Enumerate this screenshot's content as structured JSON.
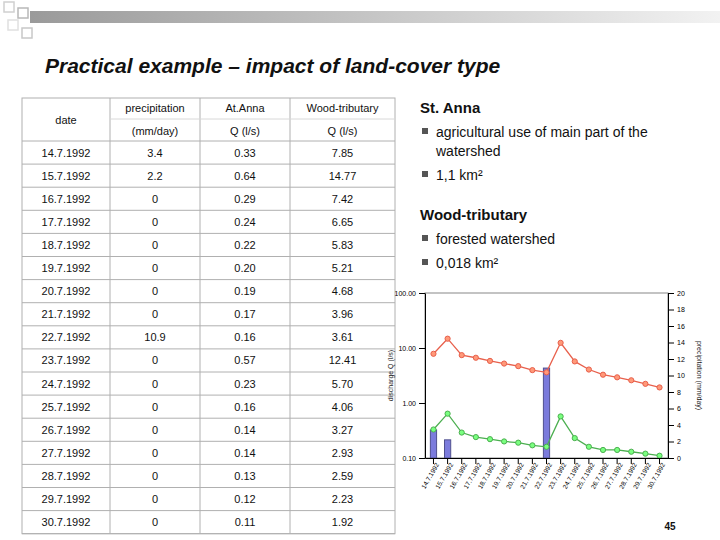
{
  "slide": {
    "title": "Practical example – impact of land-cover type",
    "page_number": "45"
  },
  "table": {
    "header": [
      {
        "lines": [
          "date"
        ]
      },
      {
        "lines": [
          "precipitation",
          "(mm/day)"
        ]
      },
      {
        "lines": [
          "At.Anna",
          "Q (l/s)"
        ]
      },
      {
        "lines": [
          "Wood-tributary",
          "Q (l/s)"
        ]
      }
    ],
    "rows": [
      [
        "14.7.1992",
        "3.4",
        "0.33",
        "7.85"
      ],
      [
        "15.7.1992",
        "2.2",
        "0.64",
        "14.77"
      ],
      [
        "16.7.1992",
        "0",
        "0.29",
        "7.42"
      ],
      [
        "17.7.1992",
        "0",
        "0.24",
        "6.65"
      ],
      [
        "18.7.1992",
        "0",
        "0.22",
        "5.83"
      ],
      [
        "19.7.1992",
        "0",
        "0.20",
        "5.21"
      ],
      [
        "20.7.1992",
        "0",
        "0.19",
        "4.68"
      ],
      [
        "21.7.1992",
        "0",
        "0.17",
        "3.96"
      ],
      [
        "22.7.1992",
        "10.9",
        "0.16",
        "3.61"
      ],
      [
        "23.7.1992",
        "0",
        "0.57",
        "12.41"
      ],
      [
        "24.7.1992",
        "0",
        "0.23",
        "5.70"
      ],
      [
        "25.7.1992",
        "0",
        "0.16",
        "4.06"
      ],
      [
        "26.7.1992",
        "0",
        "0.14",
        "3.27"
      ],
      [
        "27.7.1992",
        "0",
        "0.14",
        "2.93"
      ],
      [
        "28.7.1992",
        "0",
        "0.13",
        "2.59"
      ],
      [
        "29.7.1992",
        "0",
        "0.12",
        "2.23"
      ],
      [
        "30.7.1992",
        "0",
        "0.11",
        "1.92"
      ]
    ]
  },
  "notes": [
    {
      "heading": "St. Anna",
      "bullets": [
        "agricultural use of main part of the watershed",
        "1,1 km²"
      ]
    },
    {
      "heading": "Wood-tributary",
      "bullets": [
        "forested watershed",
        "0,018 km²"
      ]
    }
  ],
  "chart_data": {
    "type": "line",
    "y_label": "discharge Q (l/s)",
    "y2_label": "precipitation (mm/day)",
    "log": "y",
    "categories": [
      "14.7.1992",
      "15.7.1992",
      "16.7.1992",
      "17.7.1992",
      "18.7.1992",
      "19.7.1992",
      "20.7.1992",
      "21.7.1992",
      "22.7.1992",
      "23.7.1992",
      "24.7.1992",
      "25.7.1992",
      "26.7.1992",
      "27.7.1992",
      "28.7.1992",
      "29.7.1992",
      "30.7.1992"
    ],
    "ylim": [
      0.1,
      100
    ],
    "yticks": [
      {
        "value": 0.1,
        "label": "0.10"
      },
      {
        "value": 1,
        "label": "1.00"
      },
      {
        "value": 10,
        "label": "10.00"
      },
      {
        "value": 100,
        "label": "100.00"
      }
    ],
    "y2lim": [
      0,
      20
    ],
    "y2ticks": [
      0,
      2,
      4,
      6,
      8,
      10,
      12,
      14,
      16,
      18,
      20
    ],
    "series": [
      {
        "type": "bar",
        "axis": "y2",
        "color": "#7b7bdc",
        "values": [
          3.4,
          2.2,
          0,
          0,
          0,
          0,
          0,
          0,
          10.9,
          0,
          0,
          0,
          0,
          0,
          0,
          0,
          0
        ]
      },
      {
        "type": "line",
        "color": "#e8604c",
        "marker": "circle",
        "values": [
          7.85,
          14.77,
          7.42,
          6.65,
          5.83,
          5.21,
          4.68,
          3.96,
          3.61,
          12.41,
          5.7,
          4.06,
          3.27,
          2.93,
          2.59,
          2.23,
          1.92
        ]
      },
      {
        "type": "line",
        "color": "#4caf50",
        "marker": "circle",
        "values": [
          0.33,
          0.64,
          0.29,
          0.24,
          0.22,
          0.2,
          0.19,
          0.17,
          0.16,
          0.57,
          0.23,
          0.16,
          0.14,
          0.14,
          0.13,
          0.12,
          0.11
        ]
      }
    ]
  }
}
